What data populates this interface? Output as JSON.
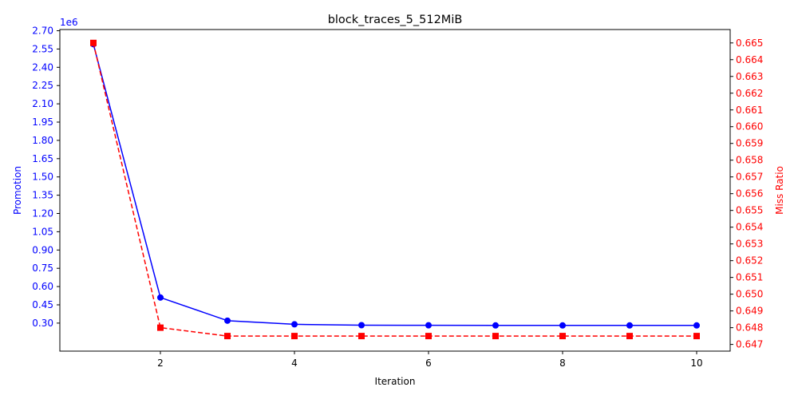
{
  "chart_data": {
    "type": "line",
    "title": "block_traces_5_512MiB",
    "xlabel": "Iteration",
    "xlim": [
      0.5,
      10.5
    ],
    "xticks": [
      2,
      4,
      6,
      8,
      10
    ],
    "left_axis": {
      "label": "Promotion",
      "offset_text": "1e6",
      "color": "#0000ff",
      "ylim": [
        0.07,
        2.71
      ],
      "ticks": [
        "0.30",
        "0.45",
        "0.60",
        "0.75",
        "0.90",
        "1.05",
        "1.20",
        "1.35",
        "1.50",
        "1.65",
        "1.80",
        "1.95",
        "2.10",
        "2.25",
        "2.40",
        "2.55",
        "2.70"
      ]
    },
    "right_axis": {
      "label": "Miss Ratio",
      "color": "#ff0000",
      "ylim": [
        0.6466,
        0.6658
      ],
      "ticks": [
        "0.647",
        "0.648",
        "0.649",
        "0.650",
        "0.651",
        "0.652",
        "0.653",
        "0.654",
        "0.655",
        "0.656",
        "0.657",
        "0.658",
        "0.659",
        "0.660",
        "0.661",
        "0.662",
        "0.663",
        "0.664",
        "0.665"
      ]
    },
    "series": [
      {
        "axis": "left",
        "color": "#0000ff",
        "line_style": "solid",
        "marker": "circle",
        "x": [
          1,
          2,
          3,
          4,
          5,
          6,
          7,
          8,
          9,
          10
        ],
        "y": [
          2.59,
          0.51,
          0.32,
          0.29,
          0.283,
          0.282,
          0.281,
          0.281,
          0.281,
          0.281
        ]
      },
      {
        "axis": "right",
        "color": "#ff0000",
        "line_style": "dashed",
        "marker": "square",
        "x": [
          1,
          2,
          3,
          4,
          5,
          6,
          7,
          8,
          9,
          10
        ],
        "y": [
          0.665,
          0.648,
          0.6475,
          0.6475,
          0.6475,
          0.6475,
          0.6475,
          0.6475,
          0.6475,
          0.6475
        ]
      }
    ]
  }
}
